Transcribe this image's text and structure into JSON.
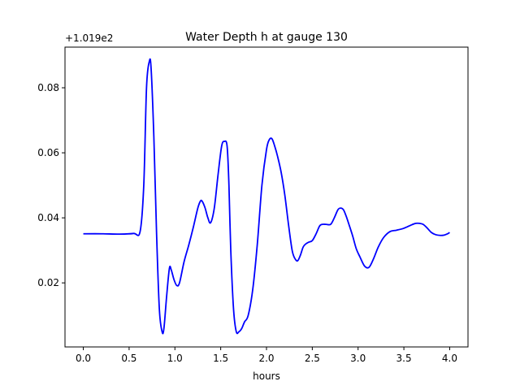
{
  "chart_data": {
    "type": "line",
    "title": "Water Depth h at gauge 130",
    "xlabel": "hours",
    "ylabel": "",
    "y_offset_text": "+1.019e2",
    "xlim": [
      -0.2,
      4.2
    ],
    "ylim": [
      0.0003,
      0.0925
    ],
    "x_ticks": [
      0.0,
      0.5,
      1.0,
      1.5,
      2.0,
      2.5,
      3.0,
      3.5,
      4.0
    ],
    "x_tick_labels": [
      "0.0",
      "0.5",
      "1.0",
      "1.5",
      "2.0",
      "2.5",
      "3.0",
      "3.5",
      "4.0"
    ],
    "y_ticks": [
      0.02,
      0.04,
      0.06,
      0.08
    ],
    "y_tick_labels": [
      "0.02",
      "0.04",
      "0.06",
      "0.08"
    ],
    "grid": false,
    "series": [
      {
        "color": "#0000ff",
        "x": [
          0.0,
          0.2,
          0.4,
          0.55,
          0.62,
          0.66,
          0.69,
          0.72,
          0.74,
          0.77,
          0.8,
          0.83,
          0.86,
          0.88,
          0.91,
          0.94,
          0.96,
          0.99,
          1.02,
          1.05,
          1.1,
          1.15,
          1.2,
          1.25,
          1.28,
          1.3,
          1.33,
          1.36,
          1.39,
          1.43,
          1.47,
          1.51,
          1.54,
          1.57,
          1.59,
          1.61,
          1.64,
          1.67,
          1.7,
          1.73,
          1.76,
          1.8,
          1.85,
          1.9,
          1.95,
          2.0,
          2.03,
          2.06,
          2.09,
          2.12,
          2.16,
          2.2,
          2.24,
          2.28,
          2.31,
          2.34,
          2.37,
          2.4,
          2.43,
          2.46,
          2.5,
          2.54,
          2.58,
          2.61,
          2.65,
          2.7,
          2.74,
          2.78,
          2.81,
          2.84,
          2.87,
          2.9,
          2.94,
          2.98,
          3.02,
          3.07,
          3.12,
          3.17,
          3.22,
          3.28,
          3.35,
          3.42,
          3.5,
          3.58,
          3.63,
          3.67,
          3.71,
          3.75,
          3.8,
          3.85,
          3.9,
          3.94,
          3.97,
          4.0
        ],
        "y": [
          0.0351,
          0.0351,
          0.035,
          0.0352,
          0.0358,
          0.05,
          0.08,
          0.088,
          0.086,
          0.065,
          0.035,
          0.012,
          0.005,
          0.006,
          0.016,
          0.0245,
          0.024,
          0.021,
          0.0192,
          0.02,
          0.0265,
          0.0315,
          0.037,
          0.043,
          0.0452,
          0.045,
          0.043,
          0.04,
          0.0385,
          0.043,
          0.053,
          0.062,
          0.0635,
          0.062,
          0.05,
          0.03,
          0.012,
          0.005,
          0.005,
          0.006,
          0.008,
          0.01,
          0.018,
          0.032,
          0.05,
          0.061,
          0.064,
          0.0643,
          0.062,
          0.059,
          0.054,
          0.047,
          0.038,
          0.03,
          0.0275,
          0.0268,
          0.0285,
          0.031,
          0.032,
          0.0325,
          0.033,
          0.035,
          0.0375,
          0.038,
          0.038,
          0.038,
          0.04,
          0.0425,
          0.043,
          0.0425,
          0.0405,
          0.038,
          0.0345,
          0.0305,
          0.028,
          0.0252,
          0.0248,
          0.0275,
          0.031,
          0.034,
          0.0358,
          0.0362,
          0.0368,
          0.0378,
          0.0383,
          0.0383,
          0.038,
          0.037,
          0.0355,
          0.0348,
          0.0346,
          0.0347,
          0.035,
          0.0355
        ]
      }
    ]
  }
}
